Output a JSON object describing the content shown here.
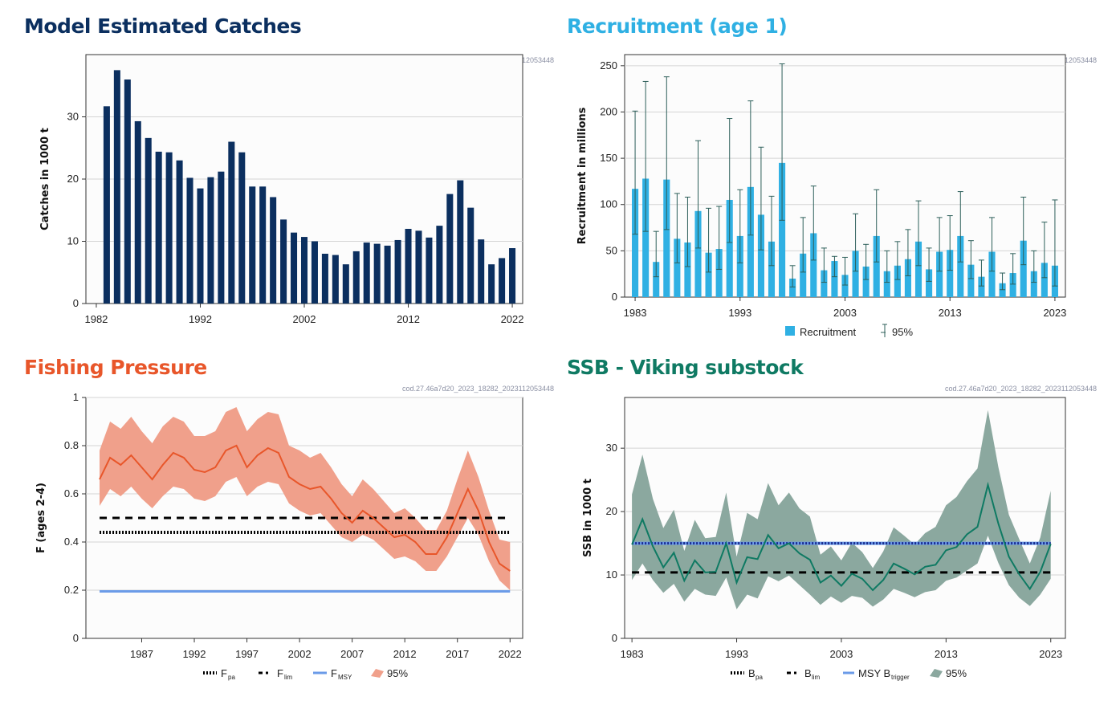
{
  "run_id": "cod.27.46a7d20_2023_18282_2023112053448",
  "colors": {
    "catch": "#0b2f5f",
    "recruit": "#2fb0e3",
    "recruit_err": "#2d5f5a",
    "fishing": "#e8562a",
    "fishing_band": "#f0a08b",
    "ssb": "#0f7a63",
    "ssb_band": "#8ba89f",
    "msy": "#6b9be8",
    "navy_line": "#1a2a8c"
  },
  "panels": {
    "catches": {
      "title": "Model Estimated Catches",
      "title_color": "#0b2f5f"
    },
    "recruitment": {
      "title": "Recruitment (age 1)",
      "title_color": "#2fb0e3"
    },
    "fishing": {
      "title": "Fishing Pressure",
      "title_color": "#e8562a"
    },
    "ssb": {
      "title": "SSB - Viking substock",
      "title_color": "#0f7a63"
    }
  },
  "chart_data": [
    {
      "type": "bar",
      "title": "Model Estimated Catches",
      "ylabel": "Catches in 1000 t",
      "xlabel": "",
      "ylim": [
        0,
        40
      ],
      "yticks": [
        0,
        10,
        20,
        30
      ],
      "xticks": [
        1982,
        1992,
        2002,
        2012,
        2022
      ],
      "xlim": [
        1981,
        2023
      ],
      "grid": "horizontal",
      "x": [
        1983,
        1984,
        1985,
        1986,
        1987,
        1988,
        1989,
        1990,
        1991,
        1992,
        1993,
        1994,
        1995,
        1996,
        1997,
        1998,
        1999,
        2000,
        2001,
        2002,
        2003,
        2004,
        2005,
        2006,
        2007,
        2008,
        2009,
        2010,
        2011,
        2012,
        2013,
        2014,
        2015,
        2016,
        2017,
        2018,
        2019,
        2020,
        2021,
        2022
      ],
      "values": [
        31.7,
        37.5,
        36.0,
        29.3,
        26.6,
        24.4,
        24.3,
        23.0,
        20.2,
        18.5,
        20.3,
        21.2,
        26.0,
        24.3,
        18.8,
        18.8,
        17.1,
        13.5,
        11.4,
        10.7,
        10.0,
        8.0,
        7.8,
        6.3,
        8.4,
        9.8,
        9.6,
        9.3,
        10.2,
        12.0,
        11.7,
        10.6,
        12.5,
        17.6,
        19.8,
        15.4,
        10.3,
        6.3,
        7.3,
        8.9
      ]
    },
    {
      "type": "bar",
      "title": "Recruitment (age 1)",
      "ylabel": "Recruitment in millions",
      "xlabel": "",
      "ylim": [
        0,
        262
      ],
      "yticks": [
        0,
        50,
        100,
        150,
        200,
        250
      ],
      "xticks": [
        1983,
        1993,
        2003,
        2013,
        2023
      ],
      "xlim": [
        1982,
        2024
      ],
      "grid": "horizontal",
      "legend": [
        "Recruitment",
        "95%"
      ],
      "legend_position": "bottom",
      "x": [
        1983,
        1984,
        1985,
        1986,
        1987,
        1988,
        1989,
        1990,
        1991,
        1992,
        1993,
        1994,
        1995,
        1996,
        1997,
        1998,
        1999,
        2000,
        2001,
        2002,
        2003,
        2004,
        2005,
        2006,
        2007,
        2008,
        2009,
        2010,
        2011,
        2012,
        2013,
        2014,
        2015,
        2016,
        2017,
        2018,
        2019,
        2020,
        2021,
        2022,
        2023
      ],
      "values": [
        117,
        128,
        38,
        127,
        63,
        59,
        93,
        48,
        52,
        105,
        66,
        119,
        89,
        60,
        145,
        20,
        47,
        69,
        29,
        39,
        24,
        50,
        33,
        66,
        28,
        34,
        41,
        60,
        30,
        49,
        51,
        66,
        35,
        22,
        49,
        15,
        26,
        61,
        28,
        37,
        34
      ],
      "lower": [
        68,
        71,
        22,
        73,
        37,
        33,
        53,
        27,
        30,
        59,
        37,
        67,
        51,
        34,
        83,
        11,
        27,
        40,
        16,
        22,
        13,
        28,
        19,
        38,
        16,
        19,
        23,
        34,
        17,
        28,
        29,
        38,
        20,
        12,
        28,
        8,
        14,
        35,
        16,
        21,
        12
      ],
      "upper": [
        201,
        233,
        71,
        238,
        112,
        108,
        169,
        96,
        98,
        193,
        116,
        212,
        162,
        109,
        252,
        34,
        86,
        120,
        53,
        44,
        43,
        90,
        57,
        116,
        50,
        60,
        73,
        104,
        53,
        86,
        88,
        114,
        61,
        40,
        86,
        26,
        47,
        108,
        50,
        81,
        105
      ]
    },
    {
      "type": "line",
      "title": "Fishing Pressure",
      "ylabel": "F (ages 2-4)",
      "xlabel": "",
      "ylim": [
        0,
        1
      ],
      "yticks": [
        0,
        0.2,
        0.4,
        0.6,
        0.8,
        1
      ],
      "xticks": [
        1987,
        1992,
        1997,
        2002,
        2007,
        2012,
        2017,
        2022
      ],
      "xlim": [
        1981.7,
        2023.2
      ],
      "grid": "horizontal",
      "legend": [
        "F_pa",
        "F_lim",
        "F_MSY",
        "95%"
      ],
      "legend_position": "bottom",
      "x": [
        1983,
        1984,
        1985,
        1986,
        1987,
        1988,
        1989,
        1990,
        1991,
        1992,
        1993,
        1994,
        1995,
        1996,
        1997,
        1998,
        1999,
        2000,
        2001,
        2002,
        2003,
        2004,
        2005,
        2006,
        2007,
        2008,
        2009,
        2010,
        2011,
        2012,
        2013,
        2014,
        2015,
        2016,
        2017,
        2018,
        2019,
        2020,
        2021,
        2022
      ],
      "series": [
        {
          "name": "F",
          "values": [
            0.66,
            0.75,
            0.72,
            0.76,
            0.71,
            0.66,
            0.72,
            0.77,
            0.75,
            0.7,
            0.69,
            0.71,
            0.78,
            0.8,
            0.71,
            0.76,
            0.79,
            0.77,
            0.67,
            0.64,
            0.62,
            0.63,
            0.58,
            0.52,
            0.48,
            0.53,
            0.5,
            0.46,
            0.42,
            0.43,
            0.4,
            0.35,
            0.35,
            0.42,
            0.52,
            0.62,
            0.53,
            0.4,
            0.31,
            0.28
          ]
        },
        {
          "name": "95% lower",
          "values": [
            0.55,
            0.62,
            0.59,
            0.63,
            0.58,
            0.54,
            0.59,
            0.63,
            0.62,
            0.58,
            0.57,
            0.59,
            0.65,
            0.67,
            0.59,
            0.63,
            0.65,
            0.64,
            0.56,
            0.53,
            0.51,
            0.52,
            0.47,
            0.42,
            0.4,
            0.43,
            0.41,
            0.37,
            0.33,
            0.34,
            0.32,
            0.28,
            0.28,
            0.34,
            0.42,
            0.5,
            0.43,
            0.32,
            0.24,
            0.2
          ]
        },
        {
          "name": "95% upper",
          "values": [
            0.78,
            0.9,
            0.87,
            0.92,
            0.86,
            0.81,
            0.88,
            0.92,
            0.9,
            0.84,
            0.84,
            0.86,
            0.94,
            0.96,
            0.86,
            0.91,
            0.94,
            0.93,
            0.8,
            0.78,
            0.75,
            0.77,
            0.71,
            0.64,
            0.59,
            0.66,
            0.62,
            0.57,
            0.52,
            0.54,
            0.5,
            0.45,
            0.45,
            0.53,
            0.66,
            0.78,
            0.67,
            0.53,
            0.41,
            0.4
          ]
        }
      ],
      "reference_lines": {
        "F_pa": 0.44,
        "F_lim": 0.5,
        "F_MSY": 0.195
      }
    },
    {
      "type": "line",
      "title": "SSB - Viking substock",
      "ylabel": "SSB in 1000 t",
      "xlabel": "",
      "ylim": [
        0,
        38
      ],
      "yticks": [
        0,
        10,
        20,
        30
      ],
      "xticks": [
        1983,
        1993,
        2003,
        2013,
        2023
      ],
      "xlim": [
        1982.3,
        2024.4
      ],
      "grid": "horizontal",
      "legend": [
        "B_pa",
        "B_lim",
        "MSY B_trigger",
        "95%"
      ],
      "legend_position": "bottom",
      "x": [
        1983,
        1984,
        1985,
        1986,
        1987,
        1988,
        1989,
        1990,
        1991,
        1992,
        1993,
        1994,
        1995,
        1996,
        1997,
        1998,
        1999,
        2000,
        2001,
        2002,
        2003,
        2004,
        2005,
        2006,
        2007,
        2008,
        2009,
        2010,
        2011,
        2012,
        2013,
        2014,
        2015,
        2016,
        2017,
        2018,
        2019,
        2020,
        2021,
        2022,
        2023
      ],
      "series": [
        {
          "name": "SSB",
          "values": [
            14.8,
            18.8,
            14.5,
            11.2,
            13.5,
            9.1,
            12.3,
            10.4,
            10.5,
            15.0,
            8.8,
            12.8,
            12.5,
            16.3,
            14.2,
            15.0,
            13.4,
            12.4,
            8.8,
            9.9,
            8.3,
            10.2,
            9.4,
            7.6,
            9.2,
            11.8,
            11.0,
            10.1,
            11.3,
            11.6,
            13.9,
            14.4,
            16.4,
            17.6,
            24.2,
            18.1,
            12.9,
            10.1,
            7.8,
            10.5,
            14.9
          ]
        },
        {
          "name": "95% lower",
          "values": [
            9.2,
            11.8,
            9.2,
            7.2,
            8.6,
            5.8,
            7.8,
            6.9,
            6.7,
            9.6,
            4.6,
            6.9,
            6.3,
            9.8,
            9.0,
            9.9,
            8.4,
            6.9,
            5.3,
            6.6,
            5.6,
            6.7,
            6.4,
            5.0,
            6.1,
            7.8,
            7.2,
            6.5,
            7.3,
            7.6,
            9.1,
            9.6,
            10.7,
            11.8,
            16.2,
            11.9,
            8.4,
            6.4,
            5.1,
            6.9,
            9.4
          ]
        },
        {
          "name": "95% upper",
          "values": [
            22.7,
            29.0,
            22.0,
            17.4,
            20.3,
            13.8,
            18.7,
            15.8,
            16.0,
            23.0,
            12.9,
            19.8,
            18.8,
            24.5,
            21.0,
            23.0,
            20.5,
            19.2,
            13.2,
            14.5,
            12.3,
            15.1,
            13.6,
            11.1,
            13.7,
            17.5,
            16.2,
            14.8,
            16.6,
            17.6,
            21.0,
            22.3,
            24.8,
            26.8,
            36.0,
            27.0,
            19.5,
            15.6,
            11.8,
            15.9,
            23.3
          ]
        }
      ],
      "reference_lines": {
        "B_pa": 15.0,
        "B_lim": 10.4,
        "MSY_B_trigger": 15.0
      }
    }
  ]
}
